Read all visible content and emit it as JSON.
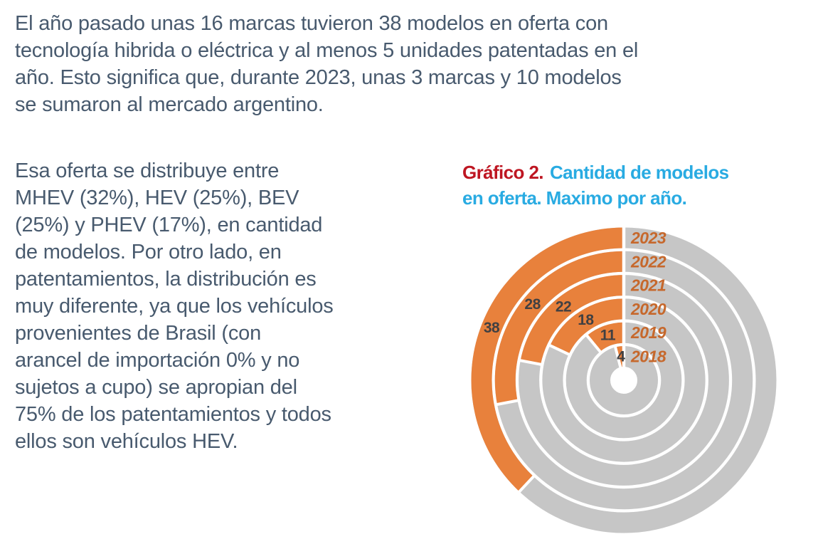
{
  "theme": {
    "body_text_color": "#485A6E",
    "chart_label_red": "#BE1622",
    "chart_title_blue": "#29ABE2"
  },
  "intro_paragraph": {
    "lines": [
      "El año pasado unas 16 marcas tuvieron 38 modelos en oferta con",
      "tecnología hibrida o eléctrica y al menos 5 unidades patentadas en el",
      "año. Esto significa que, durante 2023, unas 3 marcas y 10 modelos",
      "se sumaron al mercado argentino."
    ]
  },
  "body_paragraph": {
    "lines": [
      "Esa oferta se distribuye entre",
      "MHEV (32%), HEV (25%), BEV",
      "(25%) y PHEV (17%), en cantidad",
      "de modelos. Por otro lado, en",
      "patentamientos, la distribución es",
      "muy diferente, ya que los vehículos",
      "provenientes de Brasil (con",
      "arancel de importación 0% y no",
      "sujetos a cupo) se apropian del",
      "75% de los patentamientos y todos",
      "ellos son vehículos HEV."
    ]
  },
  "chart_heading": {
    "label": "Gráfico 2.",
    "title_line1": "Cantidad de modelos",
    "title_line2": "en oferta. Maximo por año."
  },
  "chart_data": {
    "type": "bar",
    "subtype": "radial-bar",
    "title": "Gráfico 2. Cantidad de modelos en oferta. Maximo por año.",
    "categories": [
      "2018",
      "2019",
      "2020",
      "2021",
      "2022",
      "2023"
    ],
    "values": [
      4,
      11,
      18,
      22,
      28,
      38
    ],
    "value_unit": "modelos",
    "scale_full_circle": 100,
    "direction": "counterclockwise-from-top",
    "ring_order": "innermost-2018-to-outermost-2023",
    "grid": false,
    "legend": "none (year labels at top of each ring, value labels at arc midpoint)",
    "colors": {
      "bar": "#E8813C",
      "track": "#C6C6C6",
      "year_label": "#C6682C",
      "value_label": "#414042",
      "divider": "#FFFFFF"
    }
  }
}
